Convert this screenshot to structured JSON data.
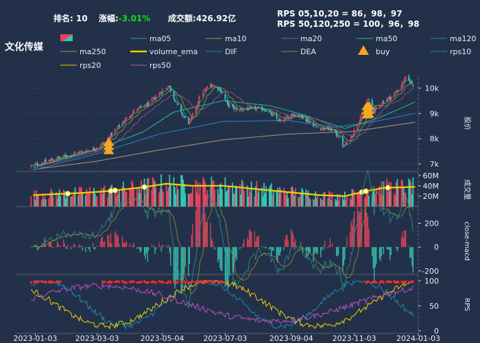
{
  "header": {
    "rank_label": "排名:",
    "rank_value": "10",
    "change_label": "涨幅:",
    "change_value": "-3.01%",
    "amount_label": "成交额:",
    "amount_value": "426.92亿",
    "rps_line1": "RPS 05,10,20 = 86，98，97",
    "rps_line2": "RPS 50,120,250 = 100，96，98"
  },
  "sector_name": "文化传媒",
  "colors": {
    "background": "#223149",
    "candle_up": "#e9435b",
    "candle_down": "#38c4b4",
    "volume_ema": "#f5d000",
    "buy_marker": "#f5a623",
    "negative_text": "#17d817"
  },
  "legend": [
    {
      "label": "",
      "color": "#e9435b",
      "kind": "candle-swatch"
    },
    {
      "label": "ma05",
      "color": "#1fa8a8",
      "kind": "line"
    },
    {
      "label": "ma10",
      "color": "#9a9a2c",
      "kind": "line"
    },
    {
      "label": "ma20",
      "color": "#9b4fa0",
      "kind": "line"
    },
    {
      "label": "ma50",
      "color": "#21c08c",
      "kind": "line"
    },
    {
      "label": "ma120",
      "color": "#2a7fc0",
      "kind": "line"
    },
    {
      "label": "ma250",
      "color": "#b08a7a",
      "kind": "line"
    },
    {
      "label": "volume_ema",
      "color": "#f5d000",
      "kind": "thick-line"
    },
    {
      "label": "DIF",
      "color": "#2a8a8a",
      "kind": "line"
    },
    {
      "label": "DEA",
      "color": "#8a8a3a",
      "kind": "line"
    },
    {
      "label": "buy",
      "color": "#f5a623",
      "kind": "triangle"
    },
    {
      "label": "rps10",
      "color": "#1a8ab0",
      "kind": "line"
    },
    {
      "label": "rps20",
      "color": "#f5d000",
      "kind": "line"
    },
    {
      "label": "rps50",
      "color": "#c050c0",
      "kind": "line"
    }
  ],
  "chart_data": [
    {
      "type": "candlestick",
      "panel": "price",
      "ylabel": "股价",
      "yticks": [
        "7k",
        "8k",
        "9k",
        "10k"
      ],
      "ytick_values": [
        7000,
        8000,
        9000,
        10000
      ],
      "ylim": [
        6700,
        10500
      ],
      "x_range": [
        "2022-12-20",
        "2024-01-03"
      ],
      "x_ticks": [
        "2023-01-03",
        "2023-03-03",
        "2023-05-04",
        "2023-07-03",
        "2023-09-04",
        "2023-11-03",
        "2024-01-03"
      ],
      "x_tick_dates": [
        "2023-01-03",
        "2023-03-03",
        "2023-05-04",
        "2023-07-03",
        "2023-09-04",
        "2023-11-03",
        "2024-01-03"
      ],
      "close_anchors": [
        [
          "2022-12-30",
          6900
        ],
        [
          "2023-01-20",
          7180
        ],
        [
          "2023-02-10",
          7420
        ],
        [
          "2023-02-28",
          7600
        ],
        [
          "2023-03-10",
          7850
        ],
        [
          "2023-03-24",
          8500
        ],
        [
          "2023-04-07",
          9100
        ],
        [
          "2023-04-20",
          9350
        ],
        [
          "2023-05-04",
          9900
        ],
        [
          "2023-05-10",
          10100
        ],
        [
          "2023-05-22",
          9000
        ],
        [
          "2023-05-30",
          8600
        ],
        [
          "2023-06-09",
          9700
        ],
        [
          "2023-06-19",
          10150
        ],
        [
          "2023-06-28",
          9950
        ],
        [
          "2023-07-05",
          9350
        ],
        [
          "2023-07-14",
          9150
        ],
        [
          "2023-07-31",
          9200
        ],
        [
          "2023-08-10",
          9150
        ],
        [
          "2023-08-25",
          8650
        ],
        [
          "2023-09-05",
          9000
        ],
        [
          "2023-09-15",
          8850
        ],
        [
          "2023-09-28",
          8450
        ],
        [
          "2023-10-12",
          8350
        ],
        [
          "2023-10-20",
          8050
        ],
        [
          "2023-10-24",
          7650
        ],
        [
          "2023-11-01",
          8150
        ],
        [
          "2023-11-09",
          8850
        ],
        [
          "2023-11-16",
          9550
        ],
        [
          "2023-11-22",
          9100
        ],
        [
          "2023-12-01",
          9500
        ],
        [
          "2023-12-08",
          9650
        ],
        [
          "2023-12-15",
          9950
        ],
        [
          "2023-12-22",
          10400
        ],
        [
          "2023-12-29",
          10150
        ]
      ],
      "moving_averages": {
        "ma120": [
          [
            "2023-01-01",
            6760
          ],
          [
            "2023-03-01",
            7380
          ],
          [
            "2023-05-01",
            8180
          ],
          [
            "2023-07-01",
            8680
          ],
          [
            "2023-09-01",
            8720
          ],
          [
            "2023-10-15",
            8450
          ],
          [
            "2023-11-15",
            8620
          ],
          [
            "2023-12-31",
            9000
          ]
        ],
        "ma250": [
          [
            "2023-01-01",
            6780
          ],
          [
            "2023-03-01",
            7100
          ],
          [
            "2023-05-01",
            7550
          ],
          [
            "2023-07-01",
            7950
          ],
          [
            "2023-09-01",
            8180
          ],
          [
            "2023-11-01",
            8280
          ],
          [
            "2023-12-31",
            8650
          ]
        ],
        "ma50": [
          [
            "2023-01-01",
            6850
          ],
          [
            "2023-03-01",
            7550
          ],
          [
            "2023-04-15",
            8250
          ],
          [
            "2023-05-15",
            9050
          ],
          [
            "2023-07-01",
            9500
          ],
          [
            "2023-08-15",
            9300
          ],
          [
            "2023-09-15",
            8950
          ],
          [
            "2023-10-25",
            8400
          ],
          [
            "2023-11-25",
            8800
          ],
          [
            "2023-12-31",
            9450
          ]
        ]
      },
      "buy_signals": [
        "2023-03-14",
        "2023-11-15",
        "2023-11-17"
      ]
    },
    {
      "type": "bar",
      "panel": "volume",
      "ylabel": "成交量",
      "yticks": [
        "20M",
        "40M",
        "60M"
      ],
      "ytick_values": [
        20,
        40,
        60
      ],
      "unit": "M",
      "ylim": [
        0,
        65
      ],
      "volume_ema": [
        [
          "2023-01-01",
          22
        ],
        [
          "2023-02-15",
          26
        ],
        [
          "2023-03-15",
          30
        ],
        [
          "2023-04-15",
          37
        ],
        [
          "2023-05-08",
          44
        ],
        [
          "2023-06-01",
          40
        ],
        [
          "2023-07-01",
          40
        ],
        [
          "2023-08-15",
          31
        ],
        [
          "2023-10-01",
          22
        ],
        [
          "2023-10-25",
          20
        ],
        [
          "2023-11-15",
          30
        ],
        [
          "2023-12-01",
          36
        ],
        [
          "2023-12-31",
          38
        ]
      ]
    },
    {
      "type": "macd",
      "panel": "macd",
      "ylabel": "close-macd",
      "yticks": [
        "-200",
        "0",
        "200"
      ],
      "ytick_values": [
        -200,
        0,
        200
      ],
      "ylim": [
        -230,
        330
      ]
    },
    {
      "type": "line",
      "panel": "rps",
      "ylabel": "RPS",
      "yticks": [
        "0",
        "50",
        "100"
      ],
      "ytick_values": [
        0,
        50,
        100
      ],
      "ylim": [
        -5,
        110
      ],
      "series": [
        {
          "name": "rps10",
          "color": "#1a8ab0"
        },
        {
          "name": "rps20",
          "color": "#f5d000"
        },
        {
          "name": "rps50",
          "color": "#c050c0"
        },
        {
          "name": "",
          "color": "#ff2a2a",
          "marker": "dots"
        }
      ]
    }
  ]
}
